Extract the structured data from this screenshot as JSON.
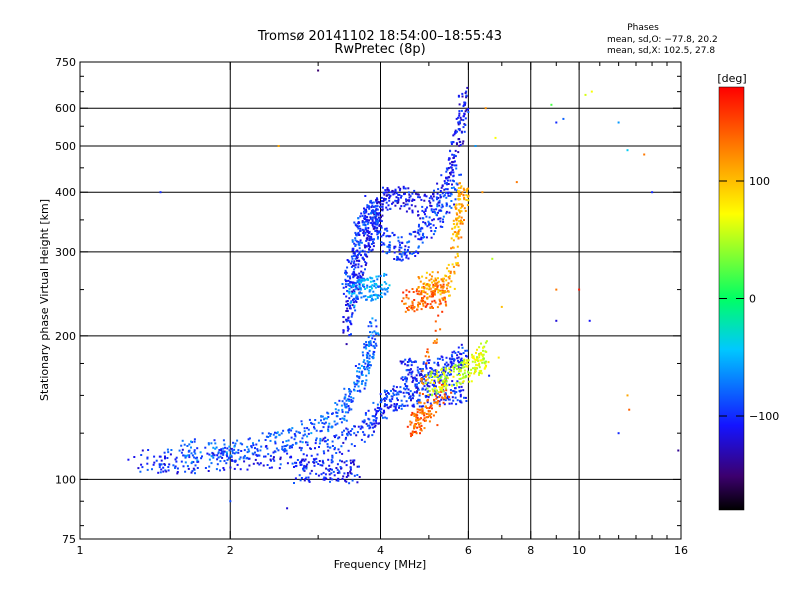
{
  "chart_data": {
    "type": "scatter",
    "title": "Tromsø 20141102 18:54:00–18:55:43",
    "subtitle": "RwPretec (8p)",
    "xlabel": "Frequency [MHz]",
    "ylabel": "Stationary phase Virtual Height [km]",
    "x_scale": "log",
    "y_scale": "log",
    "xlim": [
      1,
      16
    ],
    "ylim": [
      75,
      750
    ],
    "x_ticks": [
      1,
      2,
      4,
      6,
      8,
      10,
      16
    ],
    "x_tick_labels": [
      "1",
      "2",
      "4",
      "6",
      "8",
      "10",
      "16"
    ],
    "y_ticks": [
      75,
      100,
      200,
      300,
      400,
      500,
      600,
      750
    ],
    "y_tick_labels": [
      "75",
      "100",
      "200",
      "300",
      "400",
      "500",
      "600",
      "750"
    ],
    "grid": true,
    "phases": {
      "heading": "Phases",
      "line1": "mean, sd,O: −77.8, 20.2",
      "line2": "mean, sd,X: 102.5, 27.8"
    },
    "colorbar": {
      "label": "[deg]",
      "range": [
        -180,
        180
      ],
      "ticks": [
        100,
        0,
        -100
      ],
      "tick_labels": [
        "100",
        "0",
        "−100"
      ]
    },
    "traces": [
      {
        "phase": -100,
        "points": [
          [
            1.3,
            110
          ],
          [
            1.5,
            109
          ],
          [
            1.7,
            109
          ],
          [
            2.0,
            110
          ],
          [
            2.4,
            111
          ],
          [
            2.8,
            113
          ],
          [
            3.2,
            117
          ],
          [
            3.6,
            124
          ],
          [
            3.9,
            135
          ],
          [
            4.1,
            145
          ],
          [
            4.3,
            148
          ],
          [
            4.6,
            150
          ],
          [
            5.0,
            151
          ],
          [
            5.5,
            152
          ],
          [
            5.9,
            152
          ]
        ]
      },
      {
        "phase": -80,
        "points": [
          [
            1.6,
            115
          ],
          [
            1.9,
            114
          ],
          [
            2.2,
            117
          ],
          [
            2.6,
            121
          ],
          [
            3.0,
            128
          ],
          [
            3.3,
            137
          ],
          [
            3.5,
            150
          ],
          [
            3.7,
            168
          ],
          [
            3.8,
            185
          ],
          [
            3.9,
            210
          ]
        ]
      },
      {
        "phase": -110,
        "points": [
          [
            3.4,
            200
          ],
          [
            3.5,
            235
          ],
          [
            3.6,
            265
          ],
          [
            3.7,
            295
          ],
          [
            3.8,
            320
          ],
          [
            3.9,
            345
          ],
          [
            4.0,
            375
          ],
          [
            4.2,
            395
          ],
          [
            4.5,
            390
          ],
          [
            4.9,
            370
          ],
          [
            5.3,
            400
          ],
          [
            5.6,
            470
          ],
          [
            5.8,
            560
          ],
          [
            5.9,
            640
          ]
        ]
      },
      {
        "phase": -95,
        "points": [
          [
            3.4,
            250
          ],
          [
            3.5,
            280
          ],
          [
            3.6,
            320
          ],
          [
            3.7,
            350
          ],
          [
            3.8,
            375
          ],
          [
            4.0,
            330
          ],
          [
            4.3,
            300
          ],
          [
            4.6,
            310
          ],
          [
            5.0,
            340
          ],
          [
            5.4,
            370
          ],
          [
            5.7,
            440
          ]
        ]
      },
      {
        "phase": -60,
        "points": [
          [
            3.5,
            245
          ],
          [
            3.7,
            250
          ],
          [
            3.9,
            252
          ],
          [
            4.1,
            255
          ]
        ]
      },
      {
        "phase": -100,
        "points": [
          [
            4.4,
            170
          ],
          [
            4.7,
            168
          ],
          [
            5.0,
            167
          ],
          [
            5.3,
            170
          ],
          [
            5.6,
            175
          ],
          [
            5.9,
            182
          ]
        ]
      },
      {
        "phase": -105,
        "points": [
          [
            2.7,
            104
          ],
          [
            3.0,
            104
          ],
          [
            3.3,
            104
          ],
          [
            3.6,
            104
          ]
        ]
      },
      {
        "phase": 140,
        "points": [
          [
            4.5,
            235
          ],
          [
            4.8,
            238
          ],
          [
            5.1,
            242
          ],
          [
            5.4,
            245
          ],
          [
            4.6,
            130
          ],
          [
            4.8,
            133
          ],
          [
            5.0,
            140
          ],
          [
            5.5,
            160
          ]
        ]
      },
      {
        "phase": 110,
        "points": [
          [
            4.8,
            255
          ],
          [
            5.2,
            262
          ],
          [
            5.5,
            250
          ],
          [
            5.8,
            380
          ],
          [
            5.9,
            410
          ],
          [
            5.6,
            300
          ]
        ]
      },
      {
        "phase": 60,
        "points": [
          [
            5.0,
            158
          ],
          [
            5.3,
            160
          ],
          [
            5.7,
            165
          ],
          [
            6.0,
            170
          ],
          [
            6.3,
            175
          ],
          [
            6.5,
            185
          ]
        ]
      }
    ],
    "isolated_points": [
      [
        3.0,
        720,
        -150
      ],
      [
        2.5,
        500,
        110
      ],
      [
        1.45,
        400,
        -100
      ],
      [
        1.25,
        110,
        -110
      ],
      [
        2.0,
        90,
        -90
      ],
      [
        2.6,
        87,
        -120
      ],
      [
        6.5,
        600,
        120
      ],
      [
        6.8,
        520,
        70
      ],
      [
        7.5,
        420,
        130
      ],
      [
        8.8,
        610,
        20
      ],
      [
        9.0,
        560,
        -100
      ],
      [
        9.3,
        570,
        -80
      ],
      [
        10.3,
        640,
        60
      ],
      [
        10.6,
        650,
        70
      ],
      [
        9.0,
        250,
        130
      ],
      [
        9.0,
        215,
        -120
      ],
      [
        10.0,
        250,
        170
      ],
      [
        10.5,
        215,
        -110
      ],
      [
        12.0,
        560,
        -60
      ],
      [
        12.5,
        490,
        -40
      ],
      [
        13.5,
        480,
        130
      ],
      [
        14.0,
        400,
        -100
      ],
      [
        12.5,
        150,
        110
      ],
      [
        12.6,
        140,
        140
      ],
      [
        12.0,
        125,
        -100
      ],
      [
        15.8,
        115,
        -140
      ],
      [
        6.2,
        500,
        -60
      ],
      [
        6.4,
        400,
        120
      ],
      [
        6.7,
        290,
        50
      ],
      [
        7.0,
        230,
        100
      ],
      [
        6.9,
        180,
        80
      ],
      [
        6.6,
        165,
        -100
      ],
      [
        5.2,
        130,
        150
      ],
      [
        4.8,
        125,
        160
      ]
    ]
  }
}
